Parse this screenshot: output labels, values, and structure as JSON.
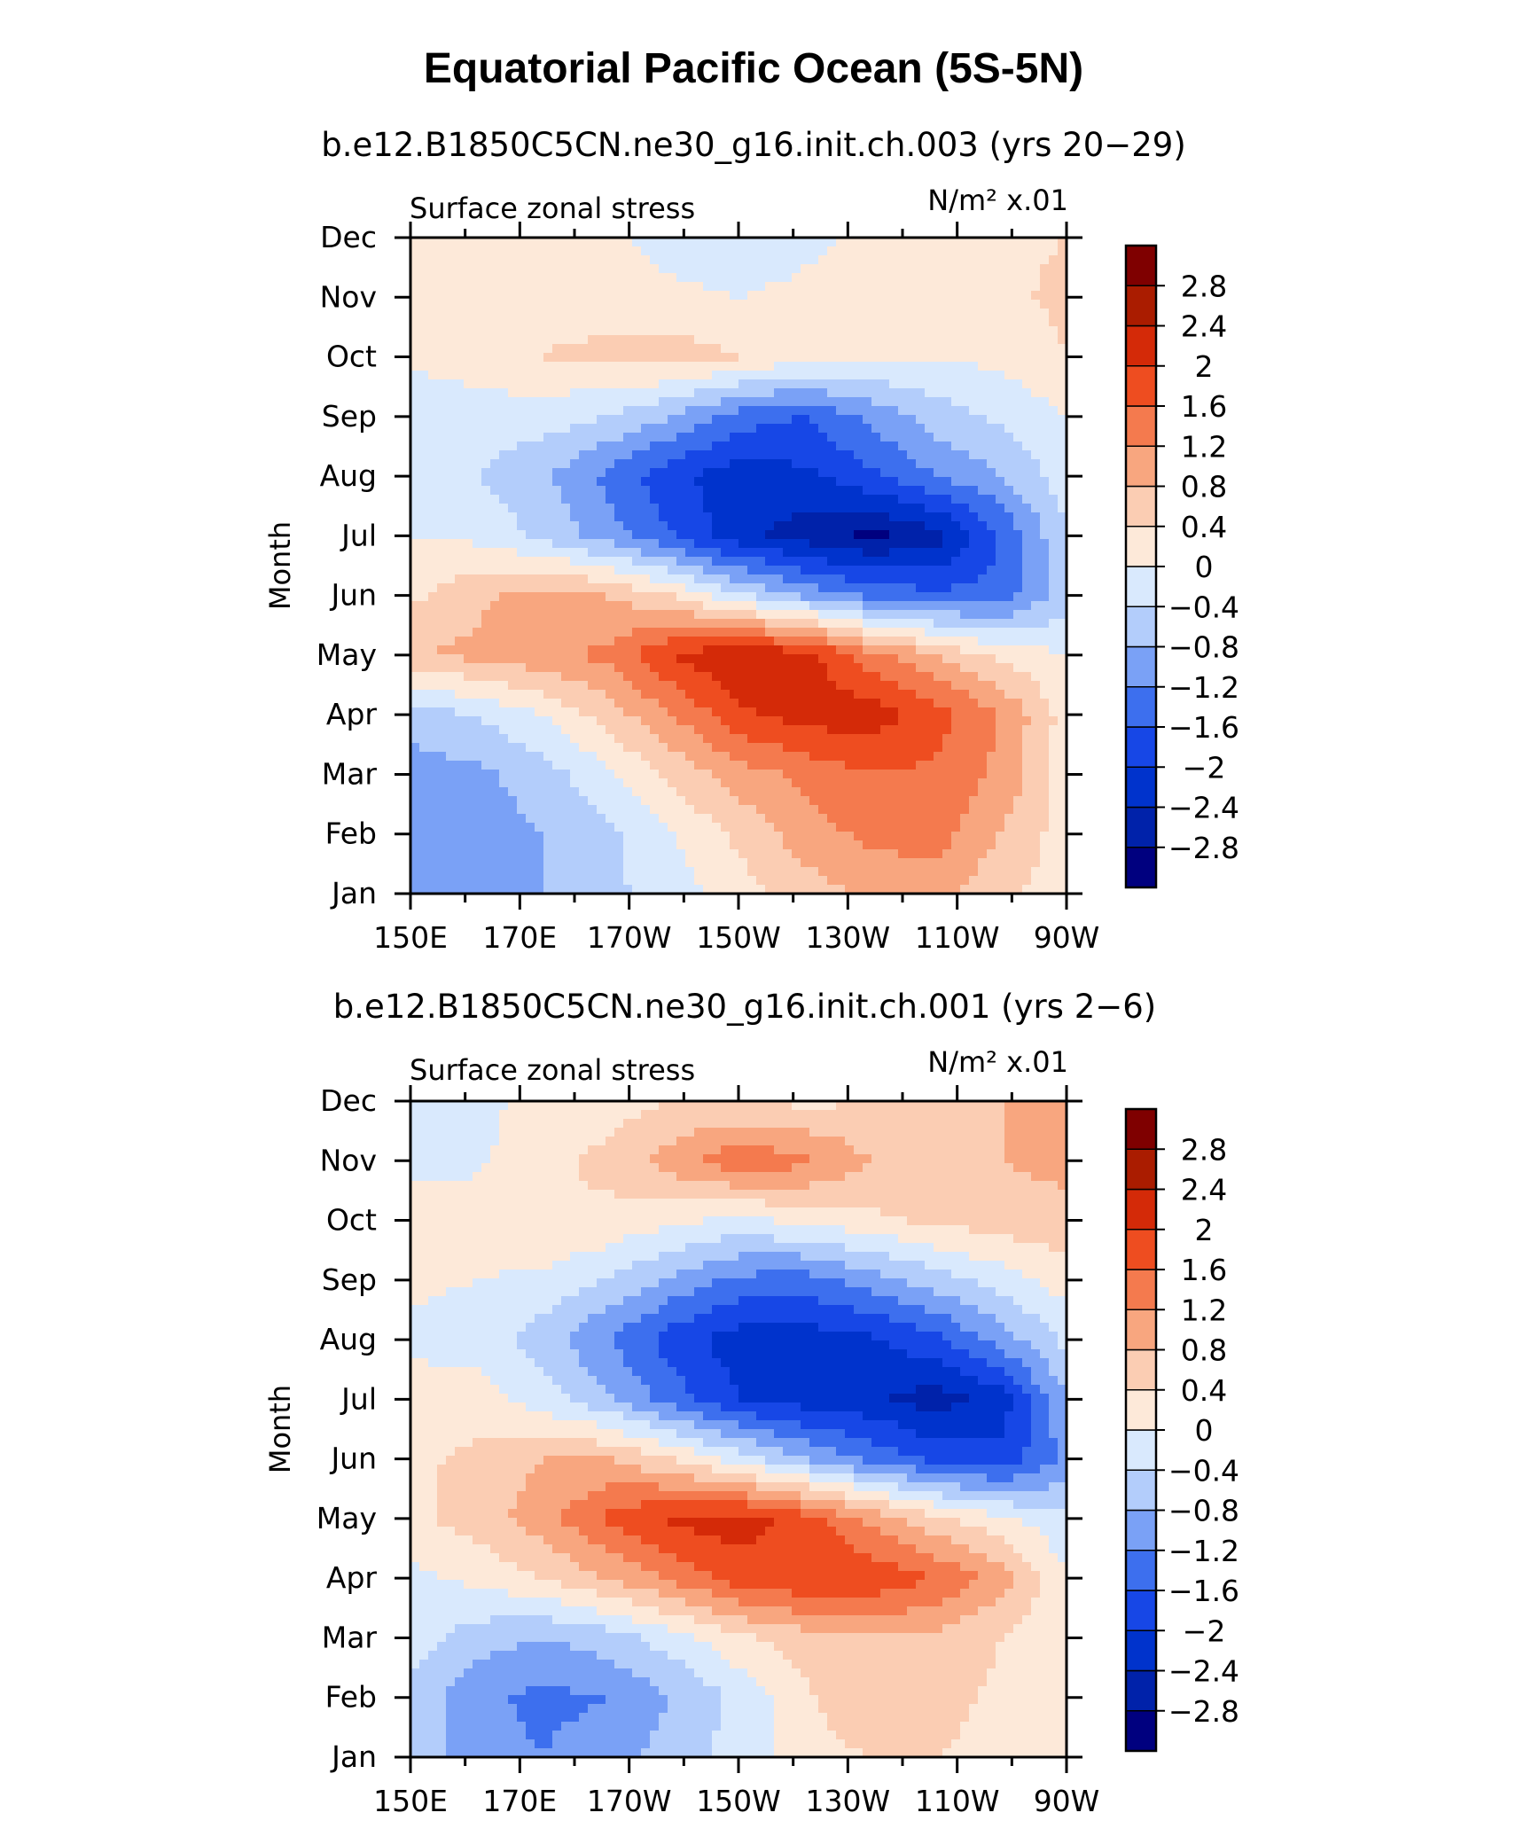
{
  "figure": {
    "title": "Equatorial Pacific Ocean (5S-5N)"
  },
  "chart_data": [
    {
      "type": "heatmap",
      "subtitle": "b.e12.B1850C5CN.ne30_g16.init.ch.003 (yrs 20−29)",
      "left_label": "Surface zonal stress",
      "right_label": "N/m² x.01",
      "ylabel": "Month",
      "x_ticks": [
        "150E",
        "170E",
        "170W",
        "150W",
        "130W",
        "110W",
        "90W"
      ],
      "x": [
        150,
        170,
        190,
        210,
        230,
        250,
        270
      ],
      "y_ticks": [
        "Jan",
        "Feb",
        "Mar",
        "Apr",
        "May",
        "Jun",
        "Jul",
        "Aug",
        "Sep",
        "Oct",
        "Nov",
        "Dec"
      ],
      "z": [
        [
          -1.2,
          -1.0,
          -0.8,
          -0.5,
          -0.2,
          0.2,
          0.6,
          0.9,
          0.9,
          0.5,
          0.2
        ],
        [
          -1.1,
          -1.0,
          -0.8,
          -0.5,
          0.0,
          0.5,
          1.0,
          1.3,
          1.4,
          0.8,
          0.2
        ],
        [
          -1.0,
          -0.9,
          -0.6,
          -0.1,
          0.5,
          1.0,
          1.3,
          1.6,
          1.5,
          1.1,
          0.2
        ],
        [
          -0.6,
          -0.4,
          0.0,
          0.6,
          1.2,
          1.9,
          2.2,
          2.2,
          1.8,
          1.2,
          0.2
        ],
        [
          0.8,
          0.9,
          1.1,
          1.3,
          2.0,
          2.4,
          2.2,
          1.4,
          0.8,
          0.3,
          0.0
        ],
        [
          0.3,
          0.7,
          1.0,
          0.8,
          0.4,
          -0.3,
          -0.9,
          -1.3,
          -1.5,
          -1.4,
          -0.6
        ],
        [
          0.0,
          -0.1,
          -0.5,
          -1.0,
          -1.6,
          -2.3,
          -2.6,
          -2.9,
          -2.6,
          -1.6,
          -0.4
        ],
        [
          -0.2,
          -0.4,
          -0.7,
          -1.3,
          -1.9,
          -2.2,
          -2.1,
          -1.7,
          -1.2,
          -0.8,
          -0.2
        ],
        [
          -0.3,
          -0.2,
          -0.2,
          -0.4,
          -0.8,
          -1.4,
          -1.6,
          -1.1,
          -0.6,
          -0.3,
          0.0
        ],
        [
          0.1,
          0.2,
          0.4,
          0.5,
          0.6,
          0.4,
          0.2,
          0.1,
          0.0,
          0.1,
          0.4
        ],
        [
          0.4,
          0.3,
          0.3,
          0.2,
          0.1,
          0.0,
          0.1,
          0.1,
          0.2,
          0.3,
          0.5
        ],
        [
          0.4,
          0.3,
          0.2,
          0.1,
          -0.2,
          -0.3,
          -0.1,
          0.1,
          0.2,
          0.3,
          0.4
        ]
      ],
      "levels": [
        -2.8,
        -2.4,
        -2,
        -1.6,
        -1.2,
        -0.8,
        -0.4,
        0,
        0.4,
        0.8,
        1.2,
        1.6,
        2,
        2.4,
        2.8
      ],
      "level_labels": [
        "−2.8",
        "−2.4",
        "−2",
        "−1.6",
        "−1.2",
        "−0.8",
        "−0.4",
        "0",
        "0.4",
        "0.8",
        "1.2",
        "1.6",
        "2",
        "2.4",
        "2.8"
      ]
    },
    {
      "type": "heatmap",
      "subtitle": "b.e12.B1850C5CN.ne30_g16.init.ch.001 (yrs 2−6)",
      "left_label": "Surface zonal stress",
      "right_label": "N/m² x.01",
      "ylabel": "Month",
      "x_ticks": [
        "150E",
        "170E",
        "170W",
        "150W",
        "130W",
        "110W",
        "90W"
      ],
      "x": [
        150,
        170,
        190,
        210,
        230,
        250,
        270
      ],
      "y_ticks": [
        "Jan",
        "Feb",
        "Mar",
        "Apr",
        "May",
        "Jun",
        "Jul",
        "Aug",
        "Sep",
        "Oct",
        "Nov",
        "Dec"
      ],
      "z": [
        [
          -0.6,
          -1.0,
          -1.2,
          -1.0,
          -0.6,
          -0.2,
          0.2,
          0.4,
          0.4,
          0.2,
          0.0
        ],
        [
          -0.5,
          -1.1,
          -1.3,
          -1.2,
          -0.8,
          -0.3,
          0.3,
          0.8,
          0.6,
          0.3,
          0.0
        ],
        [
          -0.2,
          -0.6,
          -0.8,
          -0.6,
          -0.2,
          0.3,
          0.6,
          0.8,
          0.7,
          0.4,
          0.0
        ],
        [
          -0.1,
          0.1,
          0.4,
          0.8,
          1.3,
          1.8,
          2.0,
          1.9,
          1.6,
          1.0,
          0.0
        ],
        [
          0.3,
          0.6,
          1.0,
          1.7,
          2.1,
          2.2,
          1.8,
          1.1,
          0.5,
          0.1,
          -0.3
        ],
        [
          0.3,
          0.5,
          0.8,
          0.8,
          0.4,
          -0.2,
          -0.8,
          -1.3,
          -1.7,
          -1.9,
          -1.1
        ],
        [
          0.2,
          0.2,
          -0.2,
          -0.7,
          -1.4,
          -2.0,
          -2.2,
          -2.3,
          -2.6,
          -2.2,
          -0.8
        ],
        [
          -0.1,
          -0.2,
          -0.6,
          -1.2,
          -1.8,
          -2.2,
          -2.2,
          -2.1,
          -1.7,
          -1.0,
          -0.3
        ],
        [
          0.1,
          0.0,
          -0.1,
          -0.4,
          -0.9,
          -1.3,
          -1.4,
          -1.0,
          -0.6,
          -0.2,
          0.2
        ],
        [
          0.3,
          0.3,
          0.4,
          0.3,
          0.1,
          -0.1,
          0.1,
          0.3,
          0.5,
          0.6,
          0.7
        ],
        [
          -0.2,
          -0.1,
          0.3,
          0.5,
          1.0,
          1.5,
          1.3,
          0.8,
          0.7,
          0.8,
          0.9
        ],
        [
          -0.2,
          -0.1,
          0.1,
          0.2,
          0.4,
          0.4,
          0.3,
          0.4,
          0.6,
          0.8,
          0.9
        ]
      ],
      "levels": [
        -2.8,
        -2.4,
        -2,
        -1.6,
        -1.2,
        -0.8,
        -0.4,
        0,
        0.4,
        0.8,
        1.2,
        1.6,
        2,
        2.4,
        2.8
      ],
      "level_labels": [
        "−2.8",
        "−2.4",
        "−2",
        "−1.6",
        "−1.2",
        "−0.8",
        "−0.4",
        "0",
        "0.4",
        "0.8",
        "1.2",
        "1.6",
        "2",
        "2.4",
        "2.8"
      ]
    }
  ],
  "palette": [
    "#00007f",
    "#0022aa",
    "#0033cc",
    "#1747e6",
    "#3d6fee",
    "#7aa1f6",
    "#b3cdfb",
    "#d9e9fd",
    "#fde9d9",
    "#fbcdb3",
    "#f8a67f",
    "#f47a4e",
    "#ee4d20",
    "#d42a08",
    "#aa1c00",
    "#7f0000"
  ]
}
